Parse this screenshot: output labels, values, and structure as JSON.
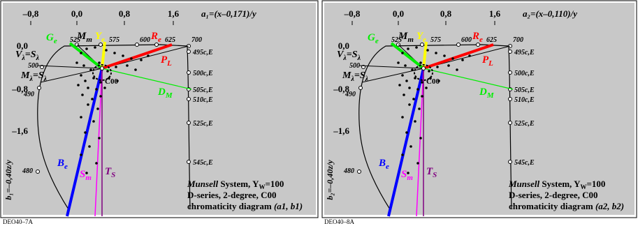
{
  "colors": {
    "panel_bg": "#c8c8c8",
    "green": "#00ee00",
    "red": "#ff0000",
    "yellow": "#ffff00",
    "blue": "#0000ff",
    "magenta": "#ff00ff",
    "purple": "#800080",
    "black": "#000000"
  },
  "panels": [
    {
      "code": "DEO40–7A",
      "top_axis_ticks": [
        "–0,8",
        "0,0",
        "0,8",
        "1,6"
      ],
      "x_formula": "a₁=(x–0,171)/y",
      "left_axis_ticks": [
        "0,0",
        "–0,8",
        "–1,6"
      ],
      "y_formula": "b₁=–0,40z/y",
      "wavelengths_top": [
        "525",
        "575",
        "600",
        "625",
        "700"
      ],
      "wavelengths_left": [
        "500",
        "490",
        "480"
      ],
      "cie_labels": [
        "495c,E",
        "500c,E",
        "505c,E",
        "510c,E",
        "525c,E",
        "545c,E"
      ],
      "labels": {
        "Ge": "G",
        "Ge_sub": "e",
        "Mm": "M",
        "Mm_sub": "m",
        "Ye": "Y",
        "Ye_sub": "e",
        "Re": "R",
        "Re_sub": "e",
        "PL": "P",
        "PL_sub": "L",
        "V": "V",
        "V_rest": "=S",
        "M": "M",
        "M_rest": "=S",
        "lambda": "λ",
        "C00": "C00",
        "DM": "D",
        "DM_sub": "M",
        "Be": "B",
        "Be_sub": "e",
        "Sm": "S",
        "Sm_sub": "m",
        "TS": "T",
        "TS_sub": "S"
      },
      "info_lines": {
        "line1_italic": "Munsell",
        "line1_rest": " System, Y",
        "line1_sub": "W",
        "line1_val": "=100",
        "line2": "D-series,  2-degree, C00",
        "line3": "chromaticity diagram ",
        "line3_paren": "(a1, b1)"
      }
    },
    {
      "code": "DEO40–8A",
      "top_axis_ticks": [
        "–0,8",
        "0,0",
        "0,8",
        "1,6"
      ],
      "x_formula": "a₂=(x–0,110)/y",
      "left_axis_ticks": [
        "0,0",
        "–0,8",
        "–1,6"
      ],
      "y_formula": "b₂=–0,40z/y",
      "wavelengths_top": [
        "525",
        "575",
        "600",
        "625",
        "700"
      ],
      "wavelengths_left": [
        "500",
        "490",
        "480"
      ],
      "cie_labels": [
        "495c,E",
        "500c,E",
        "505c,E",
        "510c,E",
        "525c,E",
        "545c,E"
      ],
      "labels": {
        "Ge": "G",
        "Ge_sub": "e",
        "Mm": "M",
        "Mm_sub": "m",
        "Ye": "Y",
        "Ye_sub": "e",
        "Re": "R",
        "Re_sub": "e",
        "PL": "P",
        "PL_sub": "L",
        "V": "V",
        "V_rest": "=S",
        "M": "M",
        "M_rest": "=S",
        "lambda": "λ",
        "C00": "C00",
        "DM": "D",
        "DM_sub": "M",
        "Be": "B",
        "Be_sub": "e",
        "Sm": "S",
        "Sm_sub": "m",
        "TS": "T",
        "TS_sub": "S"
      },
      "info_lines": {
        "line1_italic": "Munsell",
        "line1_rest": " System, Y",
        "line1_sub": "W",
        "line1_val": "=100",
        "line2": "D-series,  2-degree, C00",
        "line3": "chromaticity diagram ",
        "line3_paren": "(a2, b2)"
      }
    }
  ]
}
